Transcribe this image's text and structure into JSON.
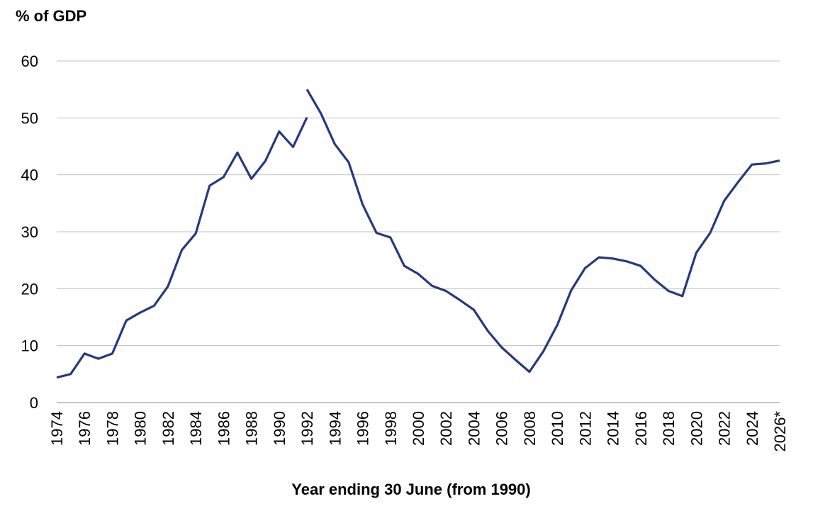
{
  "chart_data": {
    "type": "line",
    "y_label": "% of GDP",
    "x_label": "Year ending 30 June (from 1990)",
    "categories": [
      "1974",
      null,
      "1976",
      null,
      "1978",
      null,
      "1980",
      null,
      "1982",
      null,
      "1984",
      null,
      "1986",
      null,
      "1988",
      null,
      "1990",
      null,
      "1992",
      null,
      "1994",
      null,
      "1996",
      null,
      "1998",
      null,
      "2000",
      null,
      "2002",
      null,
      "2004",
      null,
      "2006",
      null,
      "2008",
      null,
      "2010",
      null,
      "2012",
      null,
      "2014",
      null,
      "2016",
      null,
      "2018",
      null,
      "2020",
      null,
      "2022",
      null,
      "2024",
      null,
      "2026*"
    ],
    "series": [
      {
        "color": "#263a7e",
        "values": [
          4.4,
          5.0,
          8.6,
          7.7,
          8.6,
          14.4,
          15.8,
          17.0,
          20.4,
          26.8,
          29.7,
          38.1,
          39.6,
          43.9,
          39.3,
          42.4,
          47.6,
          44.9,
          50.1,
          null,
          null,
          null,
          null,
          null,
          null,
          null,
          null,
          null,
          null,
          null,
          null,
          null,
          null,
          null,
          null,
          null,
          null,
          null,
          null,
          null,
          null,
          null,
          null,
          null,
          null,
          null,
          null,
          null,
          null,
          null,
          null,
          null,
          null
        ]
      },
      {
        "color": "#263a7e",
        "values": [
          null,
          null,
          null,
          null,
          null,
          null,
          null,
          null,
          null,
          null,
          null,
          null,
          null,
          null,
          null,
          null,
          null,
          null,
          55.0,
          50.8,
          45.4,
          42.2,
          34.8,
          29.8,
          29.0,
          24.0,
          22.6,
          20.5,
          19.6,
          18.0,
          16.3,
          12.6,
          9.7,
          7.5,
          5.4,
          9.0,
          13.6,
          19.7,
          23.6,
          25.5,
          25.3,
          24.8,
          24.0,
          21.6,
          19.6,
          18.7,
          26.3,
          29.8,
          35.4,
          38.7,
          41.8,
          42.0,
          42.5
        ]
      }
    ],
    "ylim": [
      0,
      60
    ],
    "yticks": [
      0,
      10,
      20,
      30,
      40,
      50,
      60
    ],
    "grid": true
  }
}
